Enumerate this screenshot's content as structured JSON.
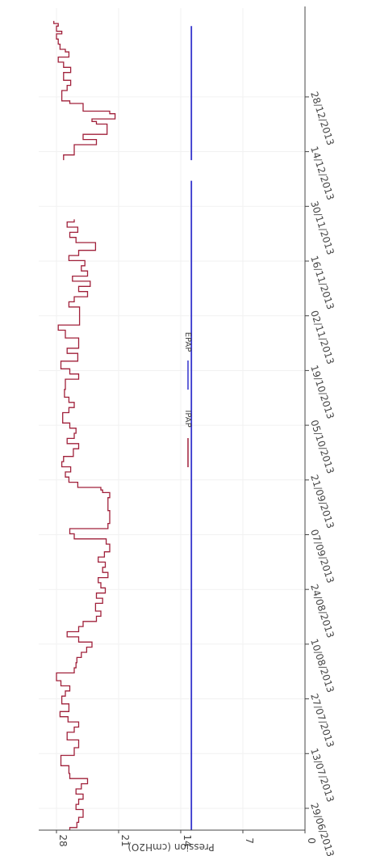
{
  "chart_data": {
    "type": "line",
    "orientation": "rotated-90-clockwise",
    "ylabel": "Pression (cmH2O)",
    "ylim": [
      0,
      31
    ],
    "y_ticks": [
      0,
      7,
      14,
      21,
      28
    ],
    "x_tick_labels": [
      "29/06/2013",
      "13/07/2013",
      "27/07/2013",
      "10/08/2013",
      "24/08/2013",
      "07/09/2013",
      "21/09/2013",
      "05/10/2013",
      "19/10/2013",
      "02/11/2013",
      "16/11/2013",
      "30/11/2013",
      "14/12/2013",
      "28/12/2013"
    ],
    "grid": true,
    "legend_position": "top",
    "colors": {
      "IPAP": "#a0203a",
      "EPAP": "#3333cc"
    },
    "series": [
      {
        "name": "IPAP",
        "step": true,
        "segments": [
          {
            "start_index": 0,
            "values": [
              26.5,
              25.7,
              25.7,
              25.5,
              25.5,
              25.0,
              25.0,
              25.0,
              25.8,
              25.8,
              25.5,
              25.5,
              25.0,
              25.0,
              25.8,
              25.8,
              25.2,
              25.2,
              24.5,
              24.5,
              26.5,
              26.5,
              26.6,
              26.6,
              26.6,
              27.5,
              27.5,
              27.5,
              27.5,
              26.0,
              26.0,
              26.0,
              25.5,
              25.5,
              25.5,
              26.8,
              26.8,
              26.8,
              26.0,
              26.0,
              25.5,
              25.5,
              26.7,
              26.7,
              27.6,
              27.6,
              26.6,
              26.6,
              26.6,
              27.4,
              27.4,
              27.4,
              27.0,
              27.0,
              26.5,
              26.5,
              27.5,
              27.5,
              28.0,
              28.0,
              28.0,
              26.0,
              26.0,
              25.8,
              25.8,
              25.7,
              25.7,
              25.2,
              25.2,
              24.6,
              24.6,
              24.0,
              24.0,
              25.5,
              25.5,
              26.8,
              26.8,
              25.5,
              25.5,
              25.0,
              25.0,
              23.5,
              23.5,
              23.0,
              23.0,
              23.6,
              23.6,
              23.6,
              22.8,
              22.8,
              23.5,
              23.5,
              22.5,
              22.5,
              23.0,
              23.0,
              23.3,
              23.3,
              22.2,
              22.2,
              22.8,
              22.8,
              22.5,
              22.5,
              23.3,
              23.3,
              22.6,
              22.6,
              22.0,
              22.0,
              22.0,
              22.4,
              22.4,
              26.0,
              26.0,
              26.5,
              26.5,
              22.2,
              22.2,
              22.0,
              22.0,
              22.0,
              22.0,
              22.0,
              22.2,
              22.2,
              22.2,
              22.2,
              22.2,
              22.0,
              22.0,
              22.8,
              23.0,
              25.6,
              25.6,
              26.6,
              26.6,
              27.0,
              27.0,
              26.4,
              26.4,
              27.4,
              27.4,
              27.2,
              27.2,
              26.1,
              26.1,
              26.1,
              25.5,
              25.5,
              26.8,
              26.8,
              26.0,
              26.0,
              25.8,
              25.8,
              26.5,
              26.5,
              27.3,
              27.3,
              27.3,
              27.3,
              26.6,
              26.6,
              26.0,
              26.0,
              26.6,
              26.6,
              27.1,
              27.1,
              27.1,
              27.0,
              27.0,
              27.0,
              27.0,
              25.5,
              25.5,
              26.5,
              26.5,
              27.5,
              27.5,
              27.5,
              25.6,
              25.6,
              25.6,
              26.8,
              26.8,
              25.5,
              25.5,
              25.5,
              25.5,
              27.0,
              27.0,
              27.0,
              27.8,
              27.8,
              25.4,
              25.4,
              25.4,
              25.4,
              25.4,
              25.4,
              25.4,
              26.6,
              26.6,
              26.0,
              26.0,
              24.5,
              24.5,
              25.5,
              25.5,
              24.2,
              24.2,
              26.2,
              26.2,
              24.5,
              24.5,
              25.2,
              25.2,
              24.8,
              24.8,
              26.6,
              26.6,
              25.5,
              25.5,
              23.6,
              23.6,
              23.6,
              25.8,
              25.8,
              26.5,
              26.5,
              25.6,
              25.6,
              26.8,
              26.8,
              26.0
            ]
          },
          {
            "start_index": 260,
            "values": [
              27.2,
              27.2,
              26.0,
              26.0,
              26.0,
              26.0,
              23.5,
              23.5,
              25.0,
              25.0,
              22.3,
              22.3,
              22.3,
              22.3,
              23.5,
              24.0,
              21.4,
              21.4,
              22.0,
              25.0,
              25.0,
              25.0,
              26.5,
              27.4,
              27.4,
              27.4,
              27.4,
              26.8,
              26.8,
              26.4,
              26.4,
              27.2,
              27.2,
              27.2,
              26.4,
              26.4,
              27.2,
              27.2,
              27.8,
              27.8,
              26.6,
              26.6,
              27.0,
              27.6,
              27.6,
              27.8,
              27.8,
              28.0,
              28.0,
              27.4,
              28.0,
              28.0,
              27.8,
              28.3
            ]
          }
        ]
      },
      {
        "name": "EPAP",
        "step": false,
        "segments": [
          {
            "start_index": 0,
            "values": [
              12.8,
              12.8
            ]
          },
          {
            "start_index": 260,
            "values": [
              12.8,
              12.8
            ]
          }
        ]
      }
    ]
  }
}
